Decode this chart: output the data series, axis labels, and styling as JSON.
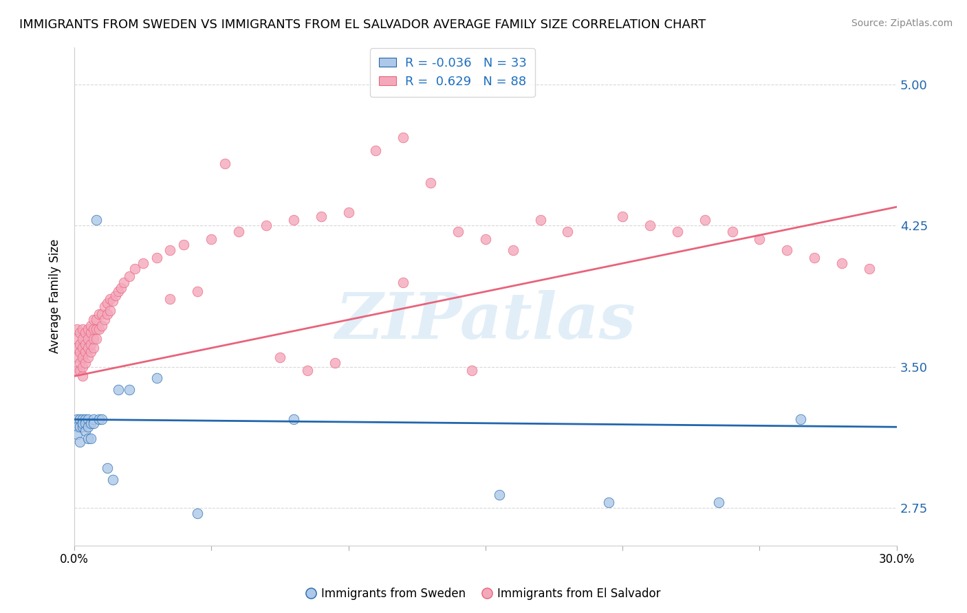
{
  "title": "IMMIGRANTS FROM SWEDEN VS IMMIGRANTS FROM EL SALVADOR AVERAGE FAMILY SIZE CORRELATION CHART",
  "source": "Source: ZipAtlas.com",
  "ylabel": "Average Family Size",
  "watermark": "ZIPatlas",
  "xlim": [
    0.0,
    0.3
  ],
  "ylim": [
    2.55,
    5.2
  ],
  "yticks": [
    2.75,
    3.5,
    4.25,
    5.0
  ],
  "sweden_color": "#adc8e8",
  "el_salvador_color": "#f4a8bc",
  "sweden_line_color": "#2166ac",
  "el_salvador_line_color": "#e8637a",
  "sweden_R": -0.036,
  "sweden_N": 33,
  "el_salvador_R": 0.629,
  "el_salvador_N": 88,
  "grid_color": "#d8d8d8",
  "title_fontsize": 13,
  "sweden_trend": [
    3.22,
    3.18
  ],
  "el_salvador_trend": [
    3.45,
    4.35
  ],
  "sweden_scatter_x": [
    0.001,
    0.001,
    0.001,
    0.002,
    0.002,
    0.002,
    0.003,
    0.003,
    0.003,
    0.004,
    0.004,
    0.004,
    0.005,
    0.005,
    0.005,
    0.006,
    0.006,
    0.007,
    0.007,
    0.008,
    0.009,
    0.01,
    0.012,
    0.014,
    0.016,
    0.02,
    0.03,
    0.045,
    0.08,
    0.155,
    0.195,
    0.235,
    0.265
  ],
  "sweden_scatter_y": [
    3.22,
    3.18,
    3.14,
    3.22,
    3.18,
    3.1,
    3.22,
    3.18,
    3.2,
    3.22,
    3.2,
    3.16,
    3.22,
    3.18,
    3.12,
    3.2,
    3.12,
    3.22,
    3.2,
    4.28,
    3.22,
    3.22,
    2.96,
    2.9,
    3.38,
    3.38,
    3.44,
    2.72,
    3.22,
    2.82,
    2.78,
    2.78,
    3.22
  ],
  "el_salvador_scatter_x": [
    0.001,
    0.001,
    0.001,
    0.001,
    0.001,
    0.002,
    0.002,
    0.002,
    0.002,
    0.002,
    0.003,
    0.003,
    0.003,
    0.003,
    0.003,
    0.003,
    0.004,
    0.004,
    0.004,
    0.004,
    0.005,
    0.005,
    0.005,
    0.005,
    0.006,
    0.006,
    0.006,
    0.006,
    0.007,
    0.007,
    0.007,
    0.007,
    0.008,
    0.008,
    0.008,
    0.009,
    0.009,
    0.01,
    0.01,
    0.011,
    0.011,
    0.012,
    0.012,
    0.013,
    0.013,
    0.014,
    0.015,
    0.016,
    0.017,
    0.018,
    0.02,
    0.022,
    0.025,
    0.03,
    0.035,
    0.04,
    0.05,
    0.06,
    0.07,
    0.08,
    0.09,
    0.1,
    0.11,
    0.12,
    0.13,
    0.14,
    0.15,
    0.16,
    0.17,
    0.18,
    0.2,
    0.21,
    0.22,
    0.23,
    0.24,
    0.25,
    0.26,
    0.27,
    0.28,
    0.29,
    0.12,
    0.055,
    0.045,
    0.035,
    0.075,
    0.085,
    0.095,
    0.145
  ],
  "el_salvador_scatter_y": [
    3.48,
    3.55,
    3.6,
    3.65,
    3.7,
    3.48,
    3.52,
    3.58,
    3.62,
    3.68,
    3.45,
    3.5,
    3.55,
    3.6,
    3.65,
    3.7,
    3.52,
    3.58,
    3.62,
    3.68,
    3.55,
    3.6,
    3.65,
    3.7,
    3.58,
    3.62,
    3.68,
    3.72,
    3.6,
    3.65,
    3.7,
    3.75,
    3.65,
    3.7,
    3.75,
    3.7,
    3.78,
    3.72,
    3.78,
    3.75,
    3.82,
    3.78,
    3.84,
    3.8,
    3.86,
    3.85,
    3.88,
    3.9,
    3.92,
    3.95,
    3.98,
    4.02,
    4.05,
    4.08,
    4.12,
    4.15,
    4.18,
    4.22,
    4.25,
    4.28,
    4.3,
    4.32,
    4.65,
    4.72,
    4.48,
    4.22,
    4.18,
    4.12,
    4.28,
    4.22,
    4.3,
    4.25,
    4.22,
    4.28,
    4.22,
    4.18,
    4.12,
    4.08,
    4.05,
    4.02,
    3.95,
    4.58,
    3.9,
    3.86,
    3.55,
    3.48,
    3.52,
    3.48
  ]
}
